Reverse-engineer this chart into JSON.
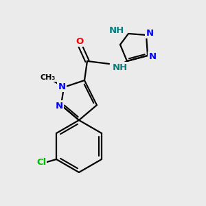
{
  "bg_color": "#ebebeb",
  "atom_colors": {
    "N": "#0000ff",
    "NH": "#008080",
    "O": "#ff0000",
    "Cl": "#00bb00",
    "C": "#000000"
  },
  "figsize": [
    3.0,
    3.0
  ],
  "dpi": 100
}
